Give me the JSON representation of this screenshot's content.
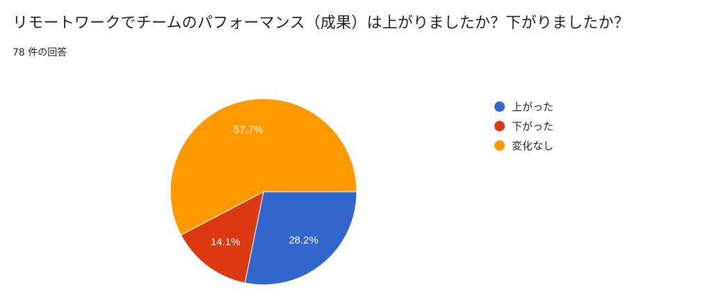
{
  "header": {
    "question": "リモートワークでチームのパフォーマンス（成果）は上がりましたか？下がりましたか？",
    "response_count": "78 件の回答"
  },
  "chart_data": {
    "type": "pie",
    "title": "",
    "start_angle": "three-o-clock, clockwise",
    "legend_position": "right",
    "series": [
      {
        "name": "上がった",
        "value": 28.2,
        "label": "28.2%",
        "color": "#3366cc"
      },
      {
        "name": "下がった",
        "value": 14.1,
        "label": "14.1%",
        "color": "#dc3912"
      },
      {
        "name": "変化なし",
        "value": 57.7,
        "label": "57.7%",
        "color": "#ff9900"
      }
    ]
  }
}
